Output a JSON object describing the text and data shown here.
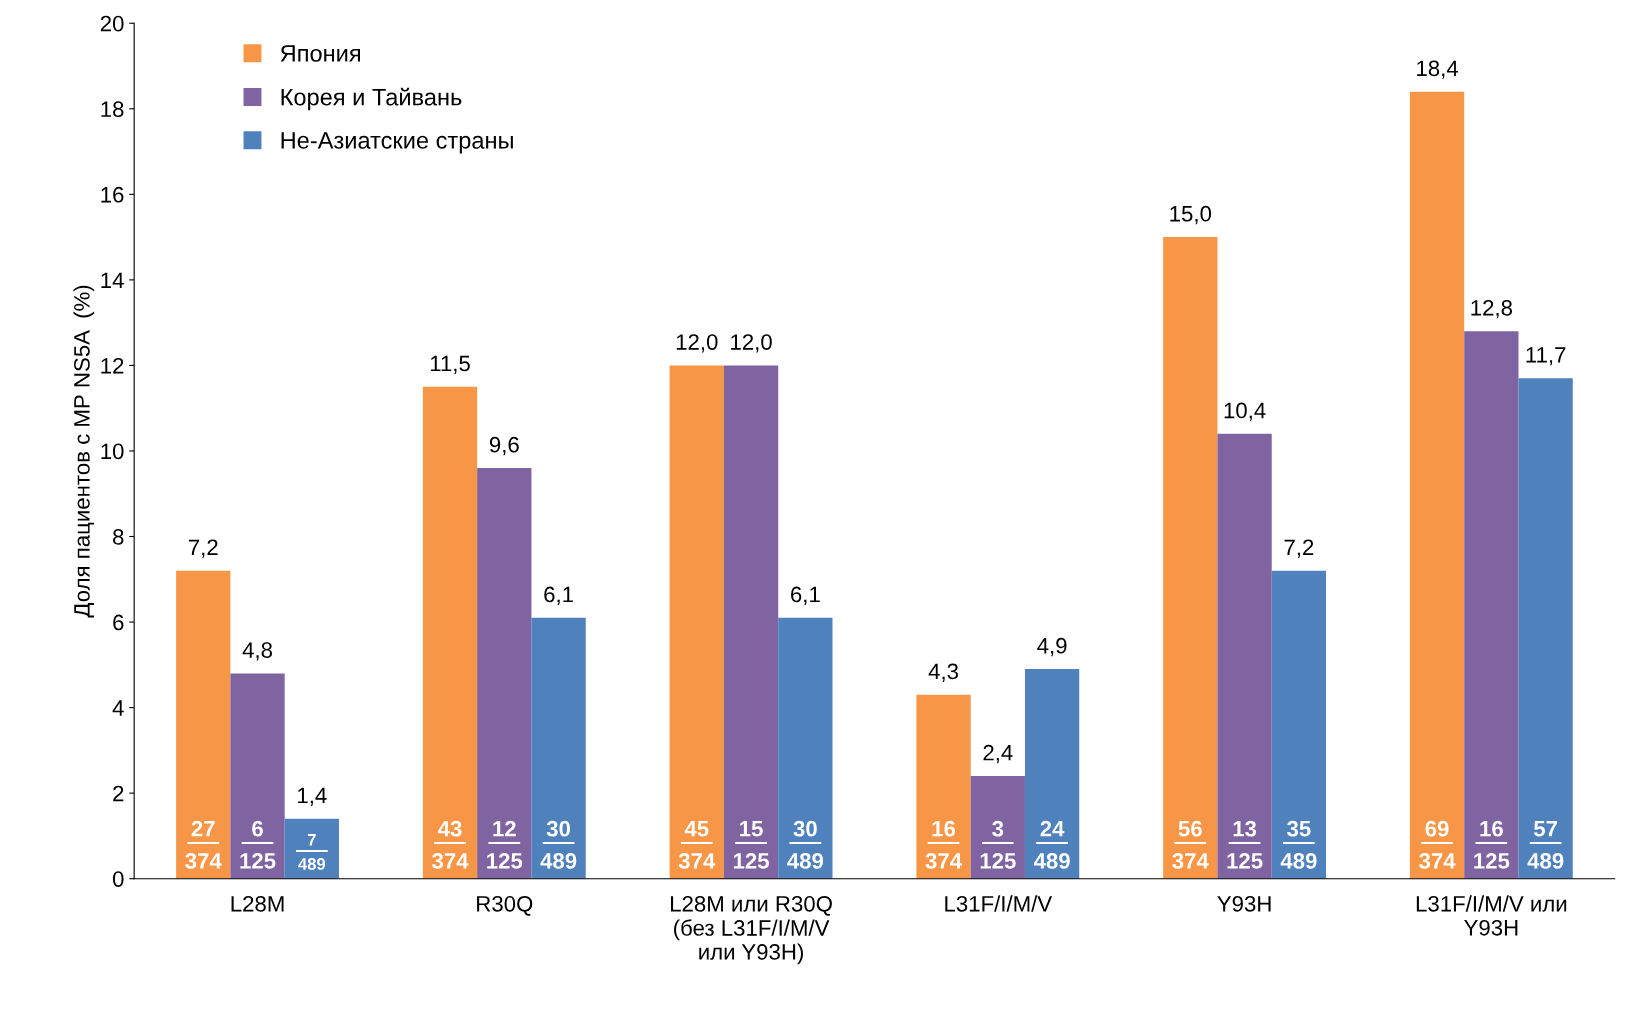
{
  "chart_data": {
    "type": "bar",
    "ylabel": "Доля пациентов с МР NS5A  (%)",
    "categories": [
      "L28M",
      "R30Q",
      "L28M или R30Q\n(без L31F/I/M/V\nили Y93H)",
      "L31F/I/M/V",
      "Y93H",
      "L31F/I/M/V или\nY93H"
    ],
    "series": [
      {
        "name": "Япония",
        "color": "#f79646",
        "values": [
          7.2,
          11.5,
          12.0,
          4.3,
          15.0,
          18.4
        ],
        "value_labels": [
          "7,2",
          "11,5",
          "12,0",
          "4,3",
          "15,0",
          "18,4"
        ]
      },
      {
        "name": "Корея и Тайвань",
        "color": "#8064a2",
        "values": [
          4.8,
          9.6,
          12.0,
          2.4,
          10.4,
          12.8
        ],
        "value_labels": [
          "4,8",
          "9,6",
          "12,0",
          "2,4",
          "10,4",
          "12,8"
        ]
      },
      {
        "name": "Не-Азиатские страны",
        "color": "#4f81bd",
        "values": [
          1.4,
          6.1,
          6.1,
          4.9,
          7.2,
          11.7
        ],
        "value_labels": [
          "1,4",
          "6,1",
          "6,1",
          "4,9",
          "7,2",
          "11,7"
        ]
      }
    ],
    "annotations": [
      "27\n374",
      "6\n125",
      "7\n489",
      "43\n374",
      "12\n125",
      "30\n489",
      "45\n374",
      "15\n125",
      "30\n489",
      "16\n374",
      "3\n125",
      "24\n489",
      "56\n374",
      "13\n125",
      "35\n489",
      "69\n374",
      "16\n125",
      "57\n489"
    ],
    "ylim": [
      0,
      20
    ],
    "yticks": [
      0,
      2,
      4,
      6,
      8,
      10,
      12,
      14,
      16,
      18,
      20
    ],
    "grid": false,
    "legend": "top left"
  }
}
